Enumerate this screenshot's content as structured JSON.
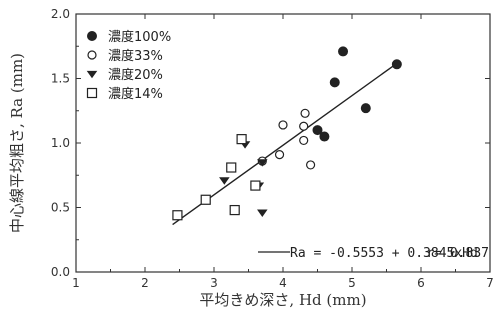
{
  "chart_data": {
    "type": "scatter",
    "xlabel": "平均きめ深さ, Hd (mm)",
    "ylabel": "中心線平均粗さ, Ra (mm)",
    "xlim": [
      1,
      7
    ],
    "ylim": [
      0.0,
      2.0
    ],
    "x_ticks": [
      "1",
      "2",
      "3",
      "4",
      "5",
      "6",
      "7"
    ],
    "y_ticks": [
      "0.0",
      "0.5",
      "1.0",
      "1.5",
      "2.0"
    ],
    "grid": false,
    "legend_position": "top-left",
    "series": [
      {
        "name": "濃度100%",
        "marker": "filled-circle",
        "points": [
          {
            "x": 4.5,
            "y": 1.1
          },
          {
            "x": 4.6,
            "y": 1.05
          },
          {
            "x": 4.75,
            "y": 1.47
          },
          {
            "x": 4.87,
            "y": 1.71
          },
          {
            "x": 5.2,
            "y": 1.27
          },
          {
            "x": 5.65,
            "y": 1.61
          }
        ]
      },
      {
        "name": "濃度33%",
        "marker": "open-circle",
        "points": [
          {
            "x": 3.7,
            "y": 0.86
          },
          {
            "x": 3.95,
            "y": 0.91
          },
          {
            "x": 4.0,
            "y": 1.14
          },
          {
            "x": 4.3,
            "y": 1.13
          },
          {
            "x": 4.3,
            "y": 1.02
          },
          {
            "x": 4.32,
            "y": 1.23
          },
          {
            "x": 4.4,
            "y": 0.83
          }
        ]
      },
      {
        "name": "濃度20%",
        "marker": "filled-triangle-down",
        "points": [
          {
            "x": 3.15,
            "y": 0.71
          },
          {
            "x": 3.45,
            "y": 0.99
          },
          {
            "x": 3.65,
            "y": 0.67
          },
          {
            "x": 3.7,
            "y": 0.85
          },
          {
            "x": 3.7,
            "y": 0.46
          }
        ]
      },
      {
        "name": "濃度14%",
        "marker": "open-square",
        "points": [
          {
            "x": 2.47,
            "y": 0.44
          },
          {
            "x": 2.88,
            "y": 0.56
          },
          {
            "x": 3.25,
            "y": 0.81
          },
          {
            "x": 3.3,
            "y": 0.48
          },
          {
            "x": 3.4,
            "y": 1.03
          },
          {
            "x": 3.6,
            "y": 0.67
          }
        ]
      }
    ],
    "regression": {
      "equation": "Ra = -0.5553 + 0.3845xHd",
      "r_label": "r= 0.837",
      "intercept": -0.5553,
      "slope": 0.3845,
      "x_range": [
        2.4,
        5.65
      ]
    }
  }
}
